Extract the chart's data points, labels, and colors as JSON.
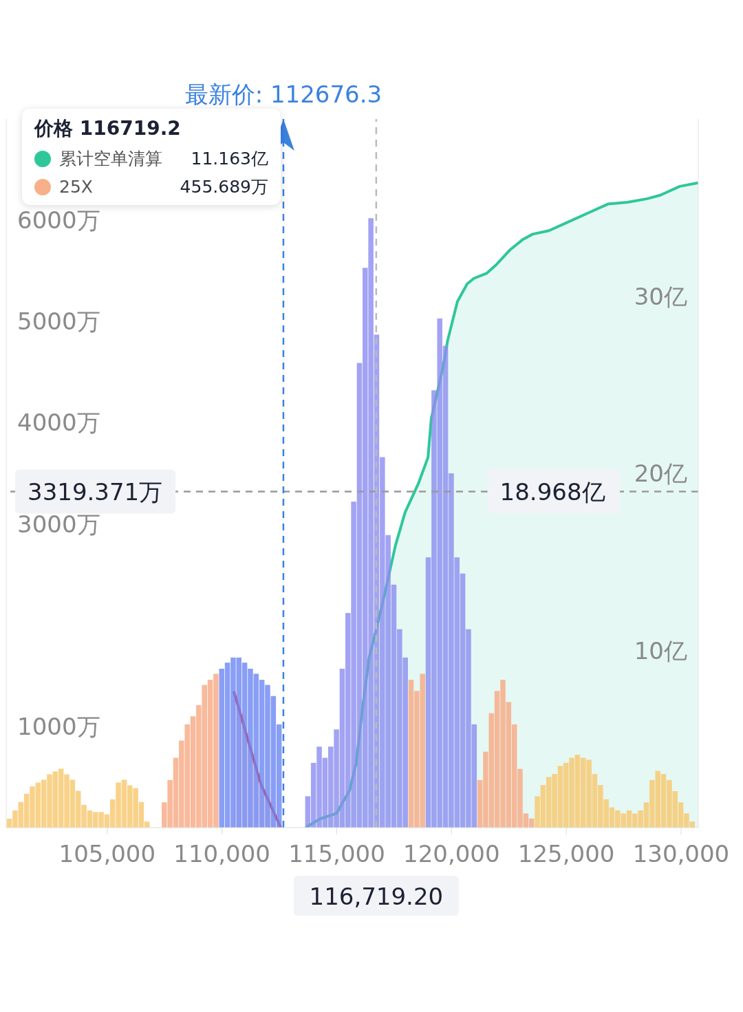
{
  "chart_data": {
    "type": "histogram",
    "bins": [
      100625,
      100875,
      101125,
      101375,
      101625,
      101875,
      102125,
      102375,
      102625,
      102875,
      103125,
      103375,
      103625,
      103875,
      104125,
      104375,
      104625,
      104875,
      105125,
      105375,
      105625,
      105875,
      106125,
      106375,
      106625,
      106875,
      107125,
      107375,
      107625,
      107875,
      108125,
      108375,
      108625,
      108875,
      109125,
      109375,
      109625,
      109875,
      110125,
      110375,
      110625,
      110875,
      111125,
      111375,
      111625,
      111875,
      112125,
      112375,
      112625,
      112875,
      113125,
      113375,
      113625,
      113875,
      114125,
      114375,
      114625,
      114875,
      115125,
      115375,
      115625,
      115875,
      116125,
      116375,
      116625,
      116875,
      117125,
      117375,
      117625,
      117875,
      118125,
      118375,
      118625,
      118875,
      119125,
      119375,
      119625,
      119875,
      120125,
      120375,
      120625,
      120875,
      121125,
      121375,
      121625,
      121875,
      122125,
      122375,
      122625,
      122875,
      123125,
      123375,
      123625,
      123875,
      124125,
      124375,
      124625,
      124875,
      125125,
      125375,
      125625,
      125875,
      126125,
      126375,
      126625,
      126875,
      127125,
      127375,
      127625,
      127875,
      128125,
      128375,
      128625,
      128875,
      129125,
      129375,
      129625,
      129875,
      130125,
      130375,
      130625
    ],
    "values": [
      88,
      170,
      253,
      335,
      407,
      445,
      473,
      527,
      555,
      582,
      527,
      473,
      363,
      225,
      170,
      154,
      154,
      132,
      280,
      445,
      473,
      418,
      390,
      253,
      60,
      0,
      0,
      250,
      470,
      690,
      860,
      1020,
      1100,
      1210,
      1410,
      1460,
      1520,
      1570,
      1630,
      1680,
      1680,
      1630,
      1570,
      1520,
      1460,
      1410,
      1300,
      1020,
      0,
      0,
      0,
      0,
      310,
      640,
      800,
      690,
      800,
      970,
      1570,
      2120,
      3220,
      4590,
      5530,
      6020,
      4870,
      3660,
      2890,
      2400,
      1960,
      1680,
      1460,
      1350,
      1520,
      2670,
      4320,
      5030,
      4760,
      3500,
      2670,
      2510,
      1960,
      1020,
      470,
      750,
      1130,
      1350,
      1460,
      1240,
      1020,
      580,
      140,
      90,
      310,
      420,
      500,
      530,
      610,
      640,
      690,
      720,
      690,
      670,
      530,
      420,
      280,
      200,
      170,
      140,
      170,
      140,
      170,
      250,
      470,
      560,
      530,
      470,
      360,
      250,
      140,
      60
    ],
    "colors": [
      "#f7c76b",
      "#f7c76b",
      "#f7c76b",
      "#f7c76b",
      "#f7c76b",
      "#f7c76b",
      "#f7c76b",
      "#f7c76b",
      "#f7c76b",
      "#f7c76b",
      "#f7c76b",
      "#f7c76b",
      "#f7c76b",
      "#f7c76b",
      "#f7c76b",
      "#f7c76b",
      "#f7c76b",
      "#f7c76b",
      "#f7c76b",
      "#f7c76b",
      "#f7c76b",
      "#f7c76b",
      "#f7c76b",
      "#f7c76b",
      "#f7c76b",
      "#f7c76b",
      "#f7c76b",
      "#f8a882",
      "#f8a882",
      "#f8a882",
      "#f8a882",
      "#f8a882",
      "#f8a882",
      "#f8a882",
      "#f8a882",
      "#f8a882",
      "#f8a882",
      "#6b86f2",
      "#6b86f2",
      "#6b86f2",
      "#6b86f2",
      "#6b86f2",
      "#6b86f2",
      "#6b86f2",
      "#6b86f2",
      "#6b86f2",
      "#6b86f2",
      "#6b86f2",
      "#6b86f2",
      "#6b86f2",
      "#6b86f2",
      "#6b86f2",
      "#8b8cf0",
      "#8b8cf0",
      "#8b8cf0",
      "#8b8cf0",
      "#8b8cf0",
      "#8b8cf0",
      "#8b8cf0",
      "#8b8cf0",
      "#8b8cf0",
      "#8b8cf0",
      "#8b8cf0",
      "#8b8cf0",
      "#8b8cf0",
      "#8b8cf0",
      "#8b8cf0",
      "#8b8cf0",
      "#8b8cf0",
      "#8b8cf0",
      "#f8a882",
      "#f8a882",
      "#f8a882",
      "#8b8cf0",
      "#8b8cf0",
      "#8b8cf0",
      "#8b8cf0",
      "#8b8cf0",
      "#8b8cf0",
      "#8b8cf0",
      "#8b8cf0",
      "#8b8cf0",
      "#f8a882",
      "#f8a882",
      "#f8a882",
      "#f8a882",
      "#f8a882",
      "#f8a882",
      "#f8a882",
      "#f8a882",
      "#f8a882",
      "#f8a882",
      "#f7c76b",
      "#f7c76b",
      "#f7c76b",
      "#f7c76b",
      "#f7c76b",
      "#f7c76b",
      "#f7c76b",
      "#f7c76b",
      "#f7c76b",
      "#f7c76b",
      "#f7c76b",
      "#f7c76b",
      "#f7c76b",
      "#f7c76b",
      "#f7c76b",
      "#f7c76b",
      "#f7c76b",
      "#f7c76b",
      "#f7c76b",
      "#f7c76b",
      "#f7c76b",
      "#f7c76b",
      "#f7c76b",
      "#f7c76b",
      "#f7c76b",
      "#f7c76b",
      "#f7c76b",
      "#f7c76b"
    ],
    "series": [
      {
        "type": "area",
        "axis": "y2",
        "color": "#2fc79a",
        "x": [
          113649,
          114275,
          114987,
          115557,
          115842,
          116127,
          116412,
          116719.2,
          117124,
          117552,
          117979,
          118549,
          118976,
          119119,
          119403,
          119631,
          119831,
          120258,
          120685,
          120970,
          121540,
          121967,
          122537,
          123107,
          123534,
          124247,
          125101,
          125956,
          126811,
          127665,
          128520,
          129090,
          129945,
          130742
        ],
        "values": [
          0,
          0.5,
          0.8,
          2.1,
          3.6,
          6.8,
          9.6,
          11.163,
          13.4,
          15.9,
          17.8,
          19.4,
          20.9,
          23.1,
          24.7,
          26.0,
          27.5,
          29.7,
          30.7,
          31.0,
          31.3,
          31.8,
          32.6,
          33.2,
          33.5,
          33.7,
          34.2,
          34.7,
          35.2,
          35.3,
          35.5,
          35.7,
          36.2,
          36.4
        ]
      },
      {
        "type": "area",
        "axis": "y2",
        "color": "#e0424f",
        "x": [
          110514,
          110856,
          111141,
          111711,
          112566
        ],
        "values": [
          7.7,
          6.2,
          4.9,
          2.4,
          0
        ]
      }
    ],
    "xlim": [
      100600,
      130750
    ],
    "xticks": [
      {
        "value": 105000,
        "label": "105,000"
      },
      {
        "value": 110000,
        "label": "110,000"
      },
      {
        "value": 115000,
        "label": "115,000"
      },
      {
        "value": 120000,
        "label": "120,000"
      },
      {
        "value": 125000,
        "label": "125,000"
      },
      {
        "value": 130000,
        "label": "130,000"
      }
    ],
    "ylim": [
      0,
      7000
    ],
    "yticks": [
      {
        "value": 1000,
        "label": "1000万"
      },
      {
        "value": 3000,
        "label": "3000万"
      },
      {
        "value": 4000,
        "label": "4000万"
      },
      {
        "value": 5000,
        "label": "5000万"
      },
      {
        "value": 6000,
        "label": "6000万"
      }
    ],
    "y2lim": [
      0,
      40
    ],
    "y2ticks": [
      {
        "value": 10,
        "label": "10亿"
      },
      {
        "value": 20,
        "label": "20亿"
      },
      {
        "value": 30,
        "label": "30亿"
      }
    ],
    "ref_lines": [
      {
        "axis": "y2",
        "value": 18.968,
        "label": "18.968亿",
        "color": "#999999",
        "line_style": "dashed"
      },
      {
        "axis": "x",
        "value": 116719.2,
        "label": "116,719.20",
        "color": "#bbbbbb",
        "line_style": "dashed"
      },
      {
        "axis": "x",
        "value": 112676.3,
        "label": "最新价: 112676.3",
        "color": "#3b82e0",
        "line_style": "dashed"
      }
    ],
    "annotations": [
      "价格 116719.2",
      "累计空单清算",
      "11.163亿",
      "25X",
      "455.689万",
      {
        "text": "3319.371万",
        "y": 3319.371
      }
    ]
  }
}
